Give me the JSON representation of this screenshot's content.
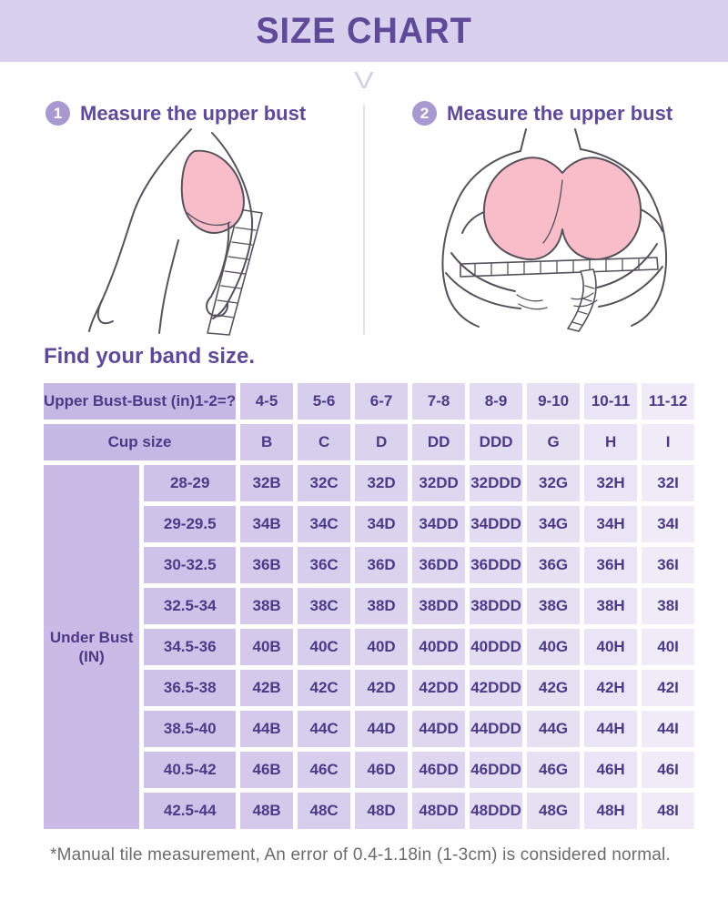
{
  "header": {
    "title": "SIZE CHART"
  },
  "chevron": "V",
  "steps": [
    {
      "number": "1",
      "label": "Measure the upper bust"
    },
    {
      "number": "2",
      "label": "Measure the upper bust"
    }
  ],
  "illustrations": [
    {
      "name": "side-view-underbust-measurement"
    },
    {
      "name": "front-view-underbust-measurement"
    }
  ],
  "section_title": "Find your band size.",
  "size_table": {
    "upper_bust_row": {
      "label": "Upper Bust-Bust (in)1-2=?",
      "values": [
        "4-5",
        "5-6",
        "6-7",
        "7-8",
        "8-9",
        "9-10",
        "10-11",
        "11-12"
      ]
    },
    "cup_row": {
      "label": "Cup size",
      "values": [
        "B",
        "C",
        "D",
        "DD",
        "DDD",
        "G",
        "H",
        "I"
      ]
    },
    "row_group_label": {
      "line1": "Under Bust",
      "line2": "(IN)"
    },
    "rows": [
      {
        "under_bust": "28-29",
        "sizes": [
          "32B",
          "32C",
          "32D",
          "32DD",
          "32DDD",
          "32G",
          "32H",
          "32I"
        ]
      },
      {
        "under_bust": "29-29.5",
        "sizes": [
          "34B",
          "34C",
          "34D",
          "34DD",
          "34DDD",
          "34G",
          "34H",
          "34I"
        ]
      },
      {
        "under_bust": "30-32.5",
        "sizes": [
          "36B",
          "36C",
          "36D",
          "36DD",
          "36DDD",
          "36G",
          "36H",
          "36I"
        ]
      },
      {
        "under_bust": "32.5-34",
        "sizes": [
          "38B",
          "38C",
          "38D",
          "38DD",
          "38DDD",
          "38G",
          "38H",
          "38I"
        ]
      },
      {
        "under_bust": "34.5-36",
        "sizes": [
          "40B",
          "40C",
          "40D",
          "40DD",
          "40DDD",
          "40G",
          "40H",
          "40I"
        ]
      },
      {
        "under_bust": "36.5-38",
        "sizes": [
          "42B",
          "42C",
          "42D",
          "42DD",
          "42DDD",
          "42G",
          "42H",
          "42I"
        ]
      },
      {
        "under_bust": "38.5-40",
        "sizes": [
          "44B",
          "44C",
          "44D",
          "44DD",
          "44DDD",
          "44G",
          "44H",
          "44I"
        ]
      },
      {
        "under_bust": "40.5-42",
        "sizes": [
          "46B",
          "46C",
          "46D",
          "46DD",
          "46DDD",
          "46G",
          "46H",
          "46I"
        ]
      },
      {
        "under_bust": "42.5-44",
        "sizes": [
          "48B",
          "48C",
          "48D",
          "48DD",
          "48DDD",
          "48G",
          "48H",
          "48I"
        ]
      }
    ]
  },
  "footnote": "*Manual tile measurement, An error of 0.4-1.18in (1-3cm) is considered normal.",
  "colors": {
    "header_bg": "#d9d0ee",
    "title_text": "#5f4a99",
    "step_circle": "#a89ad1",
    "chevron": "#d3d0e3",
    "divider": "#e4def2",
    "table_text": "#4d3a87",
    "label_header_bg": "#c6b8e4",
    "row_group_bg": "#c9bbe5",
    "band_col_bg": "#cfc2e8",
    "column_shades": [
      "#d4c9ea",
      "#d7cdec",
      "#dbd2ee",
      "#dfd7f0",
      "#e2dcf2",
      "#e6e0f3",
      "#eae5f6",
      "#efecf8"
    ],
    "footnote_text": "#6b6b6b",
    "bra_pink": "#f8bdc9",
    "line_art": "#56525c"
  }
}
